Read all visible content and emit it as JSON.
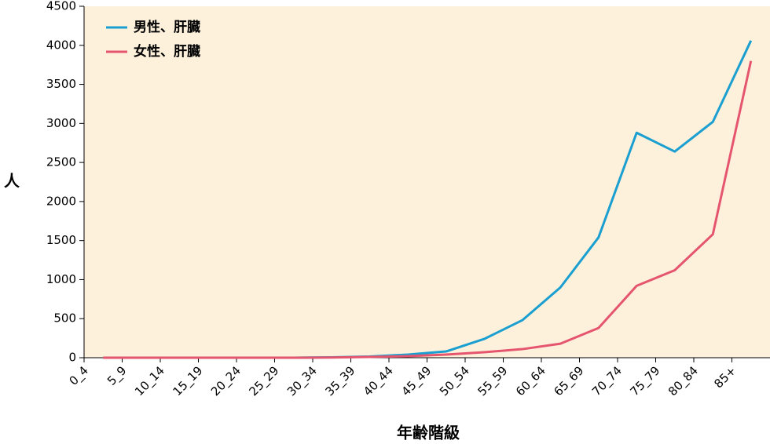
{
  "chart_data": {
    "type": "line",
    "categories": [
      "0_4",
      "5_9",
      "10_14",
      "15_19",
      "20_24",
      "25_29",
      "30_34",
      "35_39",
      "40_44",
      "45_49",
      "50_54",
      "55_59",
      "60_64",
      "65_69",
      "70_74",
      "75_79",
      "80_84",
      "85+"
    ],
    "series": [
      {
        "name": "男性、肝臓",
        "color": "#1a9fd0",
        "values": [
          0,
          0,
          0,
          0,
          0,
          0,
          5,
          15,
          40,
          80,
          240,
          480,
          900,
          1540,
          2880,
          2640,
          3020,
          4060
        ]
      },
      {
        "name": "女性、肝臓",
        "color": "#e5566e",
        "values": [
          0,
          0,
          0,
          0,
          0,
          0,
          2,
          10,
          20,
          40,
          70,
          110,
          180,
          380,
          920,
          1120,
          1580,
          3800
        ]
      }
    ],
    "ylim": [
      0,
      4500
    ],
    "yticks": [
      0,
      500,
      1000,
      1500,
      2000,
      2500,
      3000,
      3500,
      4000,
      4500
    ],
    "xlabel": "年齢階級",
    "ylabel": "人",
    "legend": "upper left",
    "background": "#fdf1dc"
  }
}
